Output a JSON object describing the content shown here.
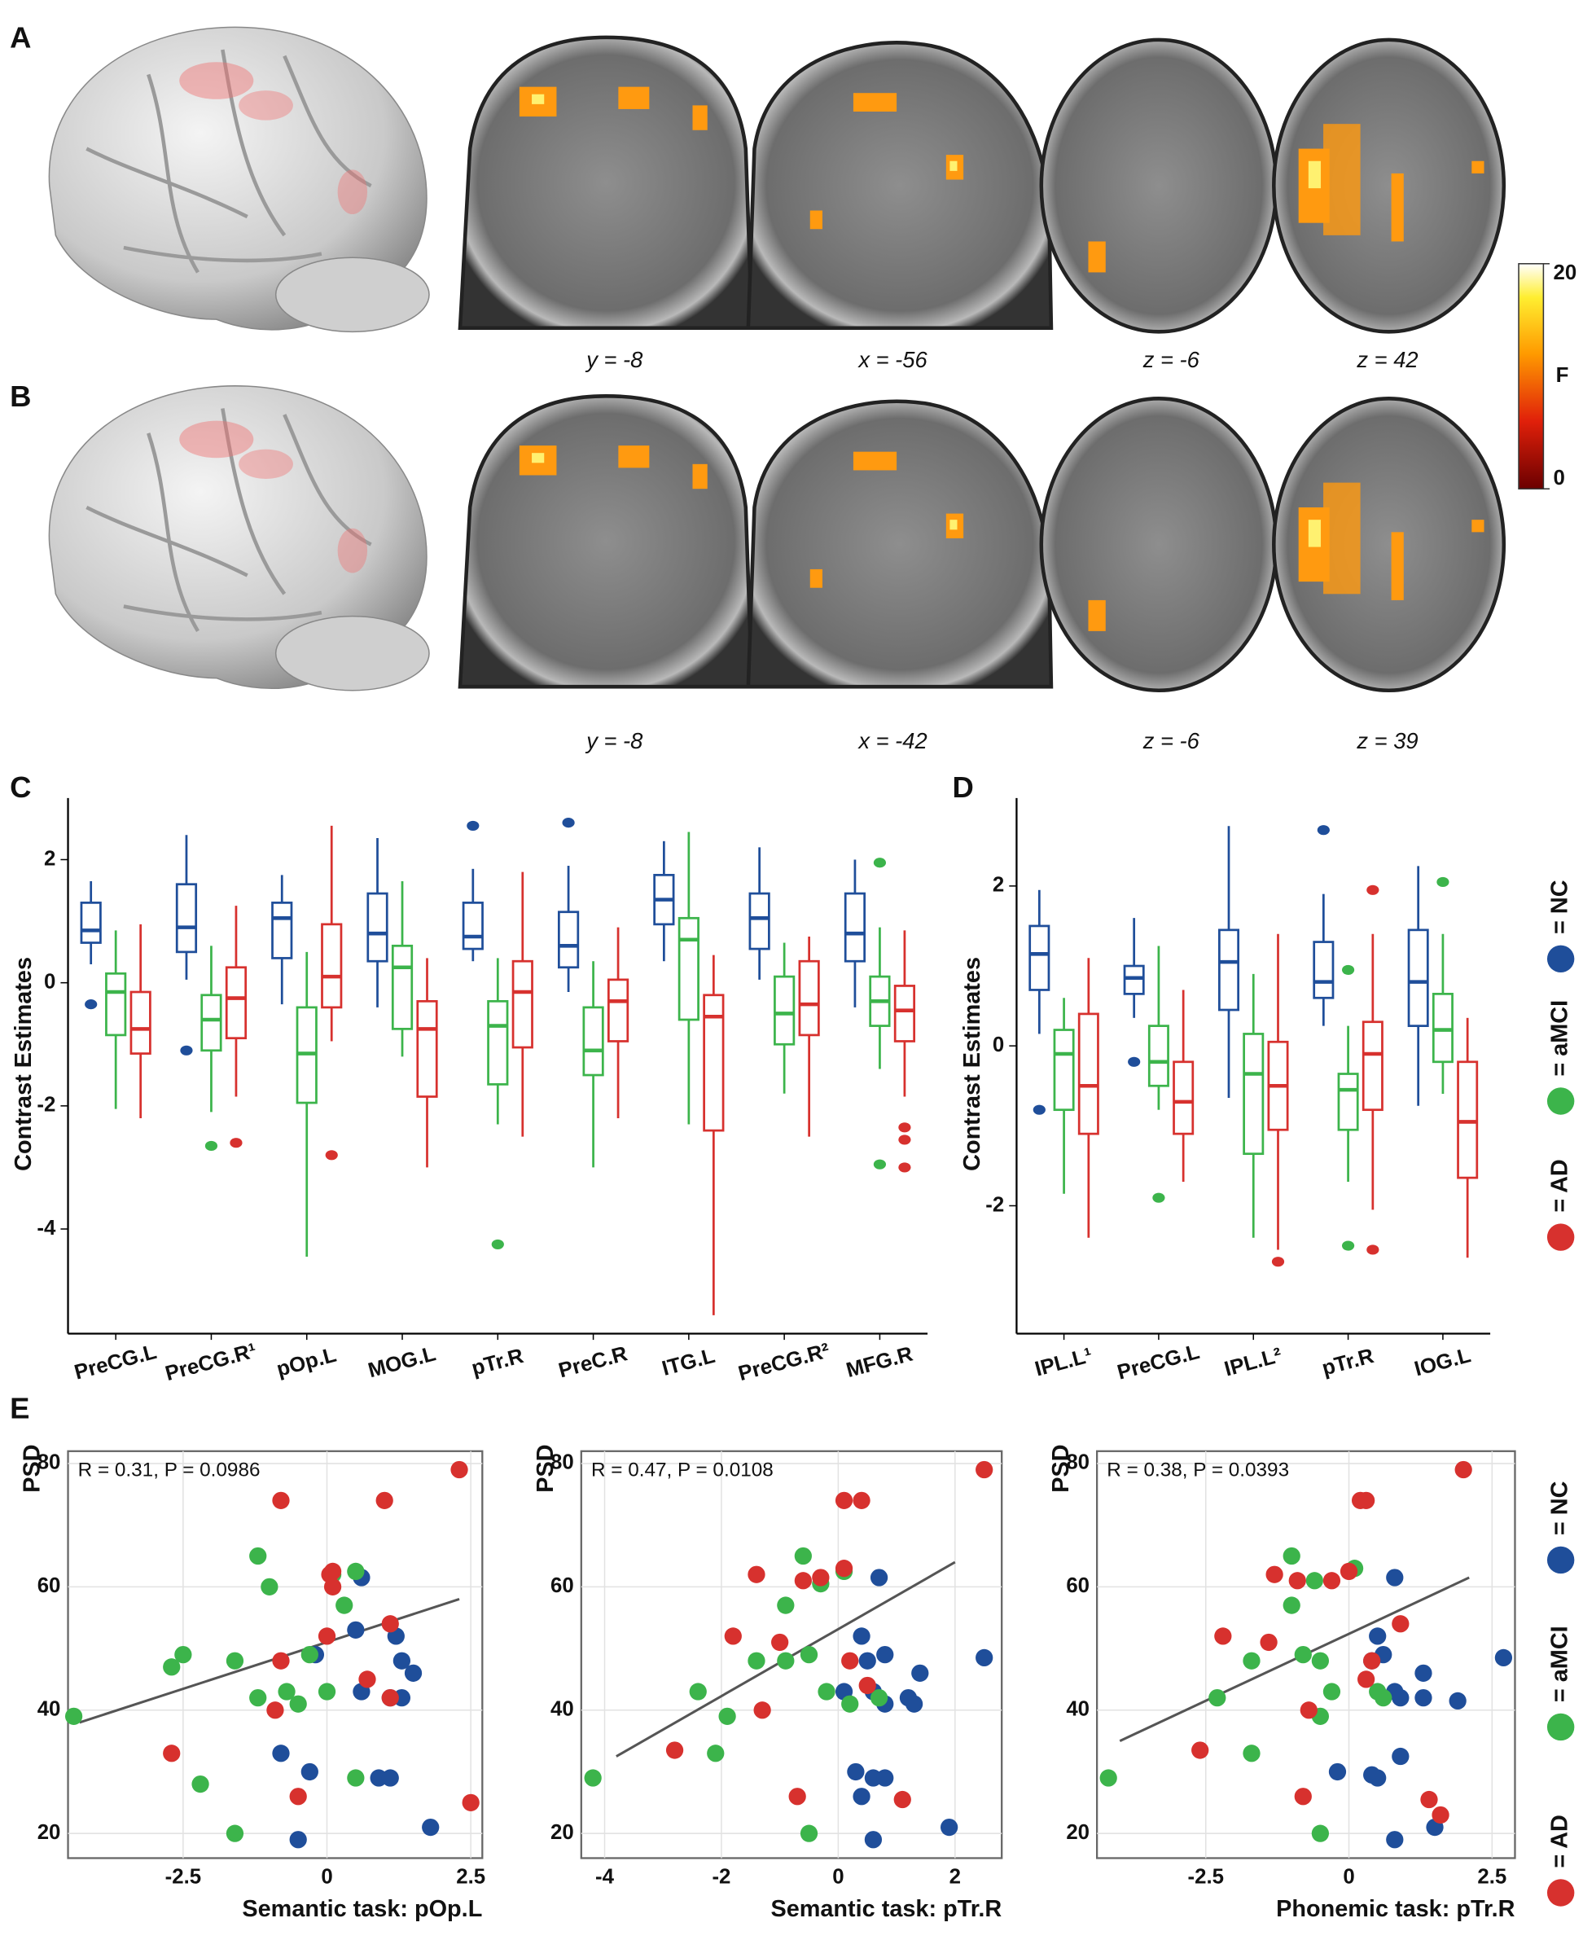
{
  "brain_panels": [
    {
      "panel_label": "A",
      "slices": [
        "y = -8",
        "x = -56",
        "z = -6",
        "z = 42"
      ]
    },
    {
      "panel_label": "B",
      "slices": [
        "y = -8",
        "x = -42",
        "z = -6",
        "z = 39"
      ]
    }
  ],
  "colorbar": {
    "label": "F",
    "ylim": [
      0,
      20
    ],
    "ticks": [
      0,
      20
    ]
  },
  "chart_data": [
    {
      "type": "box",
      "panel_label": "C",
      "y_label": "Contrast Estimates",
      "categories": [
        "PreCG.L",
        "PreCG.R¹",
        "pOp.L",
        "MOG.L",
        "pTr.R",
        "PreC.R",
        "ITG.L",
        "PreCG.R²",
        "MFG.R"
      ],
      "ylim": [
        -5.7,
        3.0
      ],
      "yticks": [
        -4,
        -2,
        0,
        2
      ],
      "series": [
        {
          "color": "#1f4e9a",
          "boxes": [
            {
              "min": 0.3,
              "q1": 0.65,
              "median": 0.85,
              "q3": 1.3,
              "max": 1.65,
              "outliers": [
                -0.35
              ]
            },
            {
              "min": 0.05,
              "q1": 0.5,
              "median": 0.9,
              "q3": 1.6,
              "max": 2.4,
              "outliers": [
                -1.1
              ]
            },
            {
              "min": -0.35,
              "q1": 0.4,
              "median": 1.05,
              "q3": 1.3,
              "max": 1.75
            },
            {
              "min": -0.4,
              "q1": 0.35,
              "median": 0.8,
              "q3": 1.45,
              "max": 2.35
            },
            {
              "min": 0.35,
              "q1": 0.55,
              "median": 0.75,
              "q3": 1.3,
              "max": 1.85,
              "outliers": [
                2.55
              ]
            },
            {
              "min": -0.15,
              "q1": 0.25,
              "median": 0.6,
              "q3": 1.15,
              "max": 1.9,
              "outliers": [
                2.6
              ]
            },
            {
              "min": 0.35,
              "q1": 0.95,
              "median": 1.35,
              "q3": 1.75,
              "max": 2.3
            },
            {
              "min": 0.05,
              "q1": 0.55,
              "median": 1.05,
              "q3": 1.45,
              "max": 2.2
            },
            {
              "min": -0.4,
              "q1": 0.35,
              "median": 0.8,
              "q3": 1.45,
              "max": 2.0
            }
          ]
        },
        {
          "color": "#3cb44b",
          "boxes": [
            {
              "min": -2.05,
              "q1": -0.85,
              "median": -0.15,
              "q3": 0.15,
              "max": 0.85
            },
            {
              "min": -2.1,
              "q1": -1.1,
              "median": -0.6,
              "q3": -0.2,
              "max": 0.6,
              "outliers": [
                -2.65
              ]
            },
            {
              "min": -4.45,
              "q1": -1.95,
              "median": -1.15,
              "q3": -0.4,
              "max": 0.5
            },
            {
              "min": -1.2,
              "q1": -0.75,
              "median": 0.25,
              "q3": 0.6,
              "max": 1.65
            },
            {
              "min": -2.3,
              "q1": -1.65,
              "median": -0.7,
              "q3": -0.3,
              "max": 0.4,
              "outliers": [
                -4.25
              ]
            },
            {
              "min": -3.0,
              "q1": -1.5,
              "median": -1.1,
              "q3": -0.4,
              "max": 0.35
            },
            {
              "min": -2.3,
              "q1": -0.6,
              "median": 0.7,
              "q3": 1.05,
              "max": 2.45
            },
            {
              "min": -1.8,
              "q1": -1.0,
              "median": -0.5,
              "q3": 0.1,
              "max": 0.65
            },
            {
              "min": -1.4,
              "q1": -0.7,
              "median": -0.3,
              "q3": 0.1,
              "max": 0.9,
              "outliers": [
                1.95,
                -2.95
              ]
            }
          ]
        },
        {
          "color": "#d7312e",
          "boxes": [
            {
              "min": -2.2,
              "q1": -1.15,
              "median": -0.75,
              "q3": -0.15,
              "max": 0.95
            },
            {
              "min": -1.85,
              "q1": -0.9,
              "median": -0.25,
              "q3": 0.25,
              "max": 1.25,
              "outliers": [
                -2.6
              ]
            },
            {
              "min": -0.95,
              "q1": -0.4,
              "median": 0.1,
              "q3": 0.95,
              "max": 2.55,
              "outliers": [
                -2.8
              ]
            },
            {
              "min": -3.0,
              "q1": -1.85,
              "median": -0.75,
              "q3": -0.3,
              "max": 0.4
            },
            {
              "min": -2.5,
              "q1": -1.05,
              "median": -0.15,
              "q3": 0.35,
              "max": 1.8
            },
            {
              "min": -2.2,
              "q1": -0.95,
              "median": -0.3,
              "q3": 0.05,
              "max": 0.9
            },
            {
              "min": -5.4,
              "q1": -2.4,
              "median": -0.55,
              "q3": -0.2,
              "max": 0.45
            },
            {
              "min": -2.5,
              "q1": -0.85,
              "median": -0.35,
              "q3": 0.35,
              "max": 0.75
            },
            {
              "min": -1.85,
              "q1": -0.95,
              "median": -0.45,
              "q3": -0.05,
              "max": 0.85,
              "outliers": [
                -2.35,
                -2.55,
                -3.0
              ]
            }
          ]
        }
      ]
    },
    {
      "type": "box",
      "panel_label": "D",
      "y_label": "Contrast Estimates",
      "legend": "right",
      "categories": [
        "IPL.L¹",
        "PreCG.L",
        "IPL.L²",
        "pTr.R",
        "IOG.L"
      ],
      "ylim": [
        -3.6,
        3.1
      ],
      "yticks": [
        -2,
        0,
        2
      ],
      "series": [
        {
          "name": "= NC",
          "color": "#1f4e9a",
          "boxes": [
            {
              "min": 0.15,
              "q1": 0.7,
              "median": 1.15,
              "q3": 1.5,
              "max": 1.95,
              "outliers": [
                -0.8
              ]
            },
            {
              "min": 0.35,
              "q1": 0.65,
              "median": 0.85,
              "q3": 1.0,
              "max": 1.6,
              "outliers": [
                -0.2
              ]
            },
            {
              "min": -0.65,
              "q1": 0.45,
              "median": 1.05,
              "q3": 1.45,
              "max": 2.75
            },
            {
              "min": 0.25,
              "q1": 0.6,
              "median": 0.8,
              "q3": 1.3,
              "max": 1.9,
              "outliers": [
                2.7
              ]
            },
            {
              "min": -0.75,
              "q1": 0.25,
              "median": 0.8,
              "q3": 1.45,
              "max": 2.25
            }
          ]
        },
        {
          "name": "= aMCI",
          "color": "#3cb44b",
          "boxes": [
            {
              "min": -1.85,
              "q1": -0.8,
              "median": -0.1,
              "q3": 0.2,
              "max": 0.6
            },
            {
              "min": -0.8,
              "q1": -0.5,
              "median": -0.2,
              "q3": 0.25,
              "max": 1.25,
              "outliers": [
                -1.9
              ]
            },
            {
              "min": -2.4,
              "q1": -1.35,
              "median": -0.35,
              "q3": 0.15,
              "max": 0.9
            },
            {
              "min": -1.7,
              "q1": -1.05,
              "median": -0.55,
              "q3": -0.35,
              "max": 0.25,
              "outliers": [
                0.95,
                -2.5
              ]
            },
            {
              "min": -0.6,
              "q1": -0.2,
              "median": 0.2,
              "q3": 0.65,
              "max": 1.4,
              "outliers": [
                2.05
              ]
            }
          ]
        },
        {
          "name": "= AD",
          "color": "#d7312e",
          "boxes": [
            {
              "min": -2.4,
              "q1": -1.1,
              "median": -0.5,
              "q3": 0.4,
              "max": 1.1
            },
            {
              "min": -1.7,
              "q1": -1.1,
              "median": -0.7,
              "q3": -0.2,
              "max": 0.7
            },
            {
              "min": -2.55,
              "q1": -1.05,
              "median": -0.5,
              "q3": 0.05,
              "max": 1.4,
              "outliers": [
                -2.7
              ]
            },
            {
              "min": -2.05,
              "q1": -0.8,
              "median": -0.1,
              "q3": 0.3,
              "max": 1.4,
              "outliers": [
                1.95,
                -2.55
              ]
            },
            {
              "min": -2.65,
              "q1": -1.65,
              "median": -0.95,
              "q3": -0.2,
              "max": 0.35
            }
          ]
        }
      ]
    },
    {
      "type": "scatter",
      "panel_label": "E",
      "annotation": "R = 0.31, P = 0.0986",
      "x_label": "Semantic task: pOp.L",
      "y_label": "PSD",
      "grid": true,
      "xlim": [
        -4.5,
        2.7
      ],
      "xticks": [
        -2.5,
        0,
        2.5
      ],
      "ylim": [
        16,
        82
      ],
      "yticks": [
        20,
        40,
        60,
        80
      ],
      "fit_line": {
        "x": [
          -4.3,
          2.3
        ],
        "y": [
          38,
          58
        ]
      },
      "series": [
        {
          "color": "#1f4e9a",
          "x": [
            -0.2,
            0.5,
            1.2,
            1.3,
            1.5,
            1.1,
            1.3,
            0.6,
            -0.8,
            -0.3,
            -0.5,
            0.9,
            1.1,
            1.8,
            0.6
          ],
          "y": [
            49,
            53,
            52,
            48,
            46,
            42,
            42,
            43,
            33,
            30,
            19,
            29,
            29,
            21,
            61.5
          ]
        },
        {
          "color": "#3cb44b",
          "x": [
            -4.4,
            -2.7,
            -2.5,
            -2.2,
            -1.6,
            -1.2,
            -1.0,
            -1.2,
            -0.7,
            -0.5,
            0,
            -0.3,
            0.3,
            0.1,
            0.5,
            0.5,
            -1.6
          ],
          "y": [
            39,
            47,
            49,
            28,
            48,
            65,
            60,
            42,
            43,
            41,
            43,
            49,
            57,
            62,
            62.5,
            29,
            20
          ]
        },
        {
          "color": "#d7312e",
          "x": [
            2.3,
            -0.8,
            1.0,
            0.1,
            0.05,
            0,
            -0.8,
            1.1,
            0.7,
            1.1,
            -0.9,
            -2.7,
            -0.5,
            2.5,
            0.1
          ],
          "y": [
            79,
            74,
            74,
            62.5,
            62,
            52,
            48,
            54,
            45,
            42,
            40,
            33,
            26,
            25,
            60
          ]
        }
      ]
    },
    {
      "type": "scatter",
      "annotation": "R = 0.47, P = 0.0108",
      "x_label": "Semantic task: pTr.R",
      "y_label": "PSD",
      "grid": true,
      "xlim": [
        -4.4,
        2.8
      ],
      "xticks": [
        -4,
        -2,
        0,
        2
      ],
      "ylim": [
        16,
        82
      ],
      "yticks": [
        20,
        40,
        60,
        80
      ],
      "fit_line": {
        "x": [
          -3.8,
          2.0
        ],
        "y": [
          32.5,
          64
        ]
      },
      "series": [
        {
          "color": "#1f4e9a",
          "x": [
            0.7,
            0.4,
            0.5,
            0.8,
            1.4,
            2.5,
            1.2,
            1.3,
            0.6,
            0.8,
            0.1,
            0.3,
            0.6,
            0.8,
            0.6,
            1.9,
            0.4
          ],
          "y": [
            61.5,
            52,
            48,
            49,
            46,
            48.5,
            42,
            41,
            43,
            41,
            43,
            30,
            29,
            29,
            19,
            21,
            26
          ]
        },
        {
          "color": "#3cb44b",
          "x": [
            -4.2,
            -2.4,
            -1.9,
            -2.1,
            -1.4,
            -0.9,
            -0.5,
            -0.6,
            -0.3,
            0.1,
            -0.9,
            -0.2,
            0.2,
            -0.5,
            0.7
          ],
          "y": [
            29,
            43,
            39,
            33,
            48,
            48,
            49,
            65,
            60.5,
            62.5,
            57,
            43,
            41,
            20,
            42
          ]
        },
        {
          "color": "#d7312e",
          "x": [
            2.5,
            0.1,
            0.4,
            -0.3,
            -0.6,
            0.1,
            -1.4,
            -1.8,
            -1.0,
            0.2,
            -1.3,
            -2.8,
            -0.7,
            1.1,
            0.5
          ],
          "y": [
            79,
            74,
            74,
            61.5,
            61,
            63,
            62,
            52,
            51,
            48,
            40,
            33.5,
            26,
            25.5,
            44
          ]
        }
      ]
    },
    {
      "type": "scatter",
      "annotation": "R = 0.38, P = 0.0393",
      "legend": "right",
      "x_label": "Phonemic task: pTr.R",
      "y_label": "PSD",
      "grid": true,
      "xlim": [
        -4.4,
        2.9
      ],
      "xticks": [
        -2.5,
        0,
        2.5
      ],
      "ylim": [
        16,
        82
      ],
      "yticks": [
        20,
        40,
        60,
        80
      ],
      "fit_line": {
        "x": [
          -4.0,
          2.1
        ],
        "y": [
          35,
          61.5
        ]
      },
      "series": [
        {
          "name": "= NC",
          "color": "#1f4e9a",
          "x": [
            0.8,
            0.5,
            0.6,
            0.4,
            1.3,
            2.7,
            0.8,
            0.9,
            1.3,
            1.9,
            0.9,
            -0.2,
            0.4,
            0.5,
            0.8,
            1.5
          ],
          "y": [
            61.5,
            52,
            49,
            48,
            46,
            48.5,
            43,
            42,
            42,
            41.5,
            32.5,
            30,
            29.5,
            29,
            19,
            21
          ]
        },
        {
          "name": "= aMCI",
          "color": "#3cb44b",
          "x": [
            -4.2,
            -2.3,
            -1.7,
            -1.7,
            -1.0,
            -1.0,
            -0.6,
            -0.5,
            -0.8,
            0.1,
            -0.3,
            0.5,
            -0.5,
            0.6,
            -0.5
          ],
          "y": [
            29,
            42,
            48,
            33,
            65,
            57,
            61,
            48,
            49,
            63,
            43,
            43,
            39,
            42,
            20
          ]
        },
        {
          "name": "= AD",
          "color": "#d7312e",
          "x": [
            2.0,
            0.2,
            0.3,
            -1.3,
            -0.9,
            -0.3,
            0,
            -2.2,
            -1.4,
            0.9,
            0.4,
            0.3,
            -0.7,
            -2.6,
            -0.8,
            1.4,
            1.6
          ],
          "y": [
            79,
            74,
            74,
            62,
            61,
            61,
            62.5,
            52,
            51,
            54,
            48,
            45,
            40,
            33.5,
            26,
            25.5,
            23
          ]
        }
      ]
    }
  ]
}
